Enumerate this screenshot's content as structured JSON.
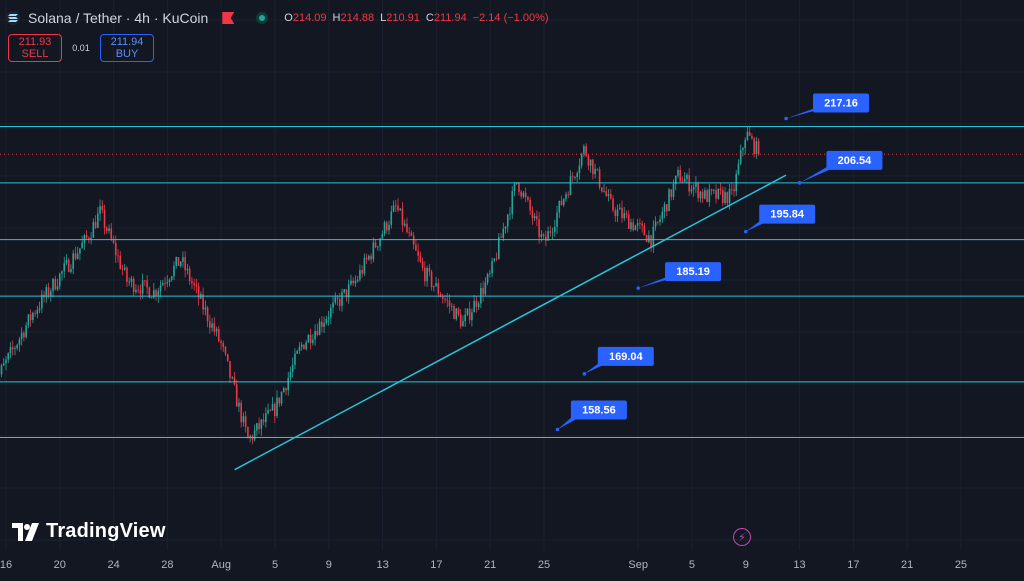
{
  "header": {
    "title": "Solana / Tether · 4h · KuCoin",
    "ohlc": [
      {
        "k": "O",
        "v": "214.09"
      },
      {
        "k": "H",
        "v": "214.88"
      },
      {
        "k": "L",
        "v": "210.91"
      },
      {
        "k": "C",
        "v": "211.94"
      },
      {
        "k": "",
        "v": "−2.14 (−1.00%)"
      }
    ]
  },
  "trade": {
    "sell_price": "211.93",
    "sell_label": "SELL",
    "spread": "0.01",
    "buy_price": "211.94",
    "buy_label": "BUY"
  },
  "watermark": "TradingView",
  "colors": {
    "background": "#131722",
    "up": "#26a69a",
    "down": "#f23645",
    "level_line": "#26c6da",
    "label_bg": "#2962ff",
    "current_price_line": "#f23645"
  },
  "chart_data": {
    "type": "candlestick",
    "symbol": "SOLUSDT",
    "interval": "4h",
    "ylim": [
      148,
      232
    ],
    "x_ticks": [
      "16",
      "20",
      "24",
      "28",
      "Aug",
      "5",
      "9",
      "13",
      "17",
      "21",
      "25",
      "Sep",
      "5",
      "9",
      "13",
      "17",
      "21",
      "25"
    ],
    "levels": [
      217.16,
      206.54,
      195.84,
      185.19,
      169.04,
      158.56
    ],
    "trendline": {
      "from": [
        "Aug 2",
        152.5
      ],
      "to": [
        "Sep 12",
        208.0
      ]
    },
    "current_price": 211.94,
    "price_path": [
      {
        "date": "Jul 15",
        "price": 168
      },
      {
        "date": "Jul 18",
        "price": 182
      },
      {
        "date": "Jul 22",
        "price": 196
      },
      {
        "date": "Jul 23",
        "price": 201
      },
      {
        "date": "Jul 25",
        "price": 188
      },
      {
        "date": "Jul 27",
        "price": 186
      },
      {
        "date": "Jul 29",
        "price": 192
      },
      {
        "date": "Aug 1",
        "price": 176
      },
      {
        "date": "Aug 3",
        "price": 158
      },
      {
        "date": "Aug 5",
        "price": 164
      },
      {
        "date": "Aug 7",
        "price": 176
      },
      {
        "date": "Aug 9",
        "price": 182
      },
      {
        "date": "Aug 11",
        "price": 188
      },
      {
        "date": "Aug 14",
        "price": 202
      },
      {
        "date": "Aug 16",
        "price": 190
      },
      {
        "date": "Aug 19",
        "price": 180
      },
      {
        "date": "Aug 21",
        "price": 189
      },
      {
        "date": "Aug 23",
        "price": 207
      },
      {
        "date": "Aug 25",
        "price": 195
      },
      {
        "date": "Aug 28",
        "price": 213
      },
      {
        "date": "Aug 30",
        "price": 202
      },
      {
        "date": "Sep 2",
        "price": 196
      },
      {
        "date": "Sep 4",
        "price": 208
      },
      {
        "date": "Sep 6",
        "price": 204
      },
      {
        "date": "Sep 8",
        "price": 204
      },
      {
        "date": "Sep 9",
        "price": 216
      },
      {
        "date": "Sep 10",
        "price": 212
      }
    ]
  }
}
